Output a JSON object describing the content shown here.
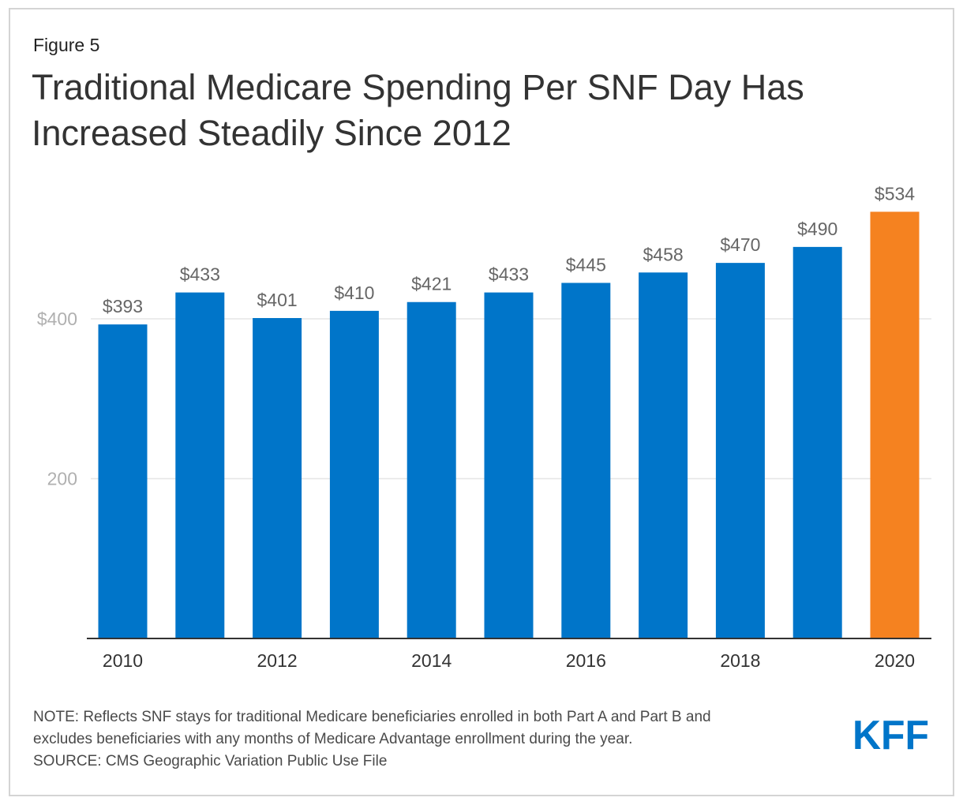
{
  "figure_label": "Figure 5",
  "title_lines": [
    "Traditional Medicare Spending Per SNF Day Has",
    "Increased Steadily Since 2012"
  ],
  "chart_data": {
    "type": "bar",
    "categories": [
      "2010",
      "2011",
      "2012",
      "2013",
      "2014",
      "2015",
      "2016",
      "2017",
      "2018",
      "2019",
      "2020"
    ],
    "values": [
      393,
      433,
      401,
      410,
      421,
      433,
      445,
      458,
      470,
      490,
      534
    ],
    "data_labels": [
      "$393",
      "$433",
      "$401",
      "$410",
      "$421",
      "$433",
      "$445",
      "$458",
      "$470",
      "$490",
      "$534"
    ],
    "x_tick_labels": [
      "2010",
      "",
      "2012",
      "",
      "2014",
      "",
      "2016",
      "",
      "2018",
      "",
      "2020"
    ],
    "y_ticks": [
      {
        "value": 200,
        "label": "200"
      },
      {
        "value": 400,
        "label": "$400"
      }
    ],
    "ylim": [
      0,
      540
    ],
    "grid": true,
    "colors": {
      "default": "#0075c9",
      "highlight": "#f58220",
      "highlight_index": 10,
      "grid": "#e6e6e6",
      "axis": "#333333",
      "y_tick_text": "#b0b0b0",
      "x_tick_text": "#333333",
      "data_label_text": "#666666"
    }
  },
  "notes": [
    "NOTE: Reflects SNF stays for traditional Medicare beneficiaries enrolled in both Part A and Part B and",
    "excludes beneficiaries with any months of Medicare Advantage enrollment during the year.",
    "SOURCE: CMS Geographic Variation Public Use File"
  ],
  "logo": {
    "text": "KFF",
    "color": "#0075c9"
  }
}
